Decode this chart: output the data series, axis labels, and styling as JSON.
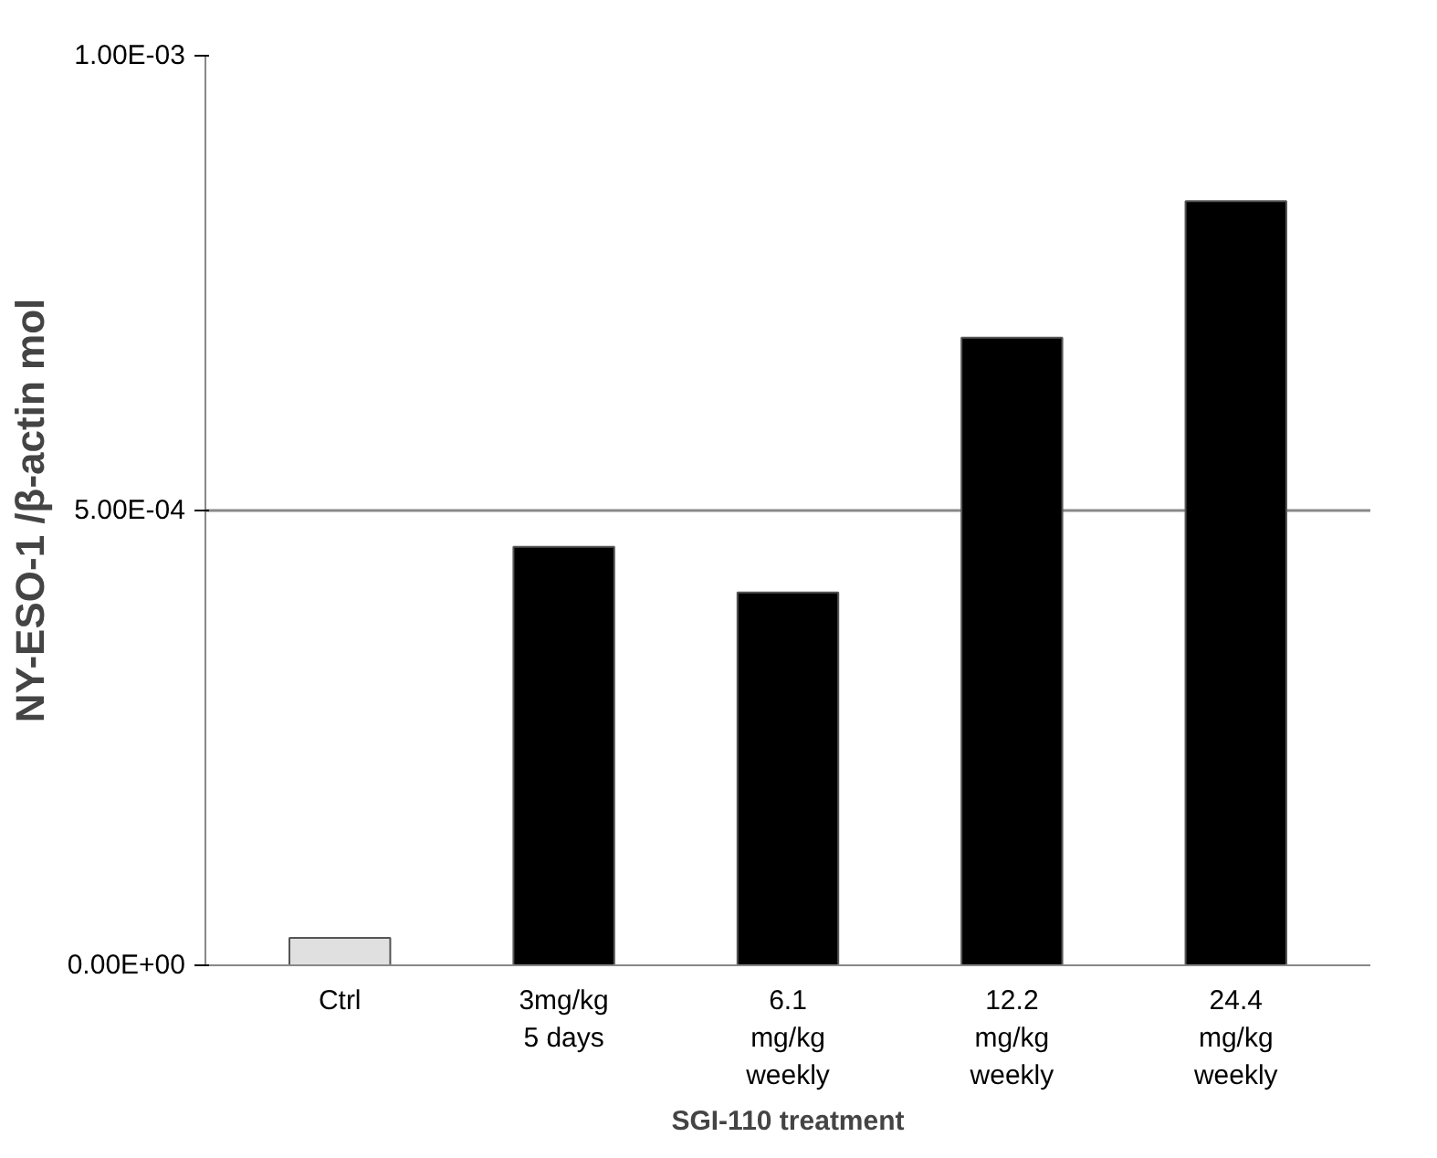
{
  "chart_data": {
    "type": "bar",
    "xlabel": "SGI-110 treatment",
    "ylabel": "NY-ESO-1 /β-actin mol",
    "categories": [
      "Ctrl",
      "3mg/kg\n5 days",
      "6.1\nmg/kg\nweekly",
      "12.2\nmg/kg\nweekly",
      "24.4\nmg/kg\nweekly"
    ],
    "values": [
      3e-05,
      0.00046,
      0.00041,
      0.00069,
      0.00084
    ],
    "colors": [
      "#e0e0e0",
      "#000000",
      "#000000",
      "#000000",
      "#000000"
    ],
    "ylim": [
      0,
      0.001
    ],
    "yticks": [
      {
        "value": 0,
        "label": "0.00E+00"
      },
      {
        "value": 0.0005,
        "label": "5.00E-04"
      },
      {
        "value": 0.001,
        "label": "1.00E-03"
      }
    ],
    "grid": "y"
  }
}
